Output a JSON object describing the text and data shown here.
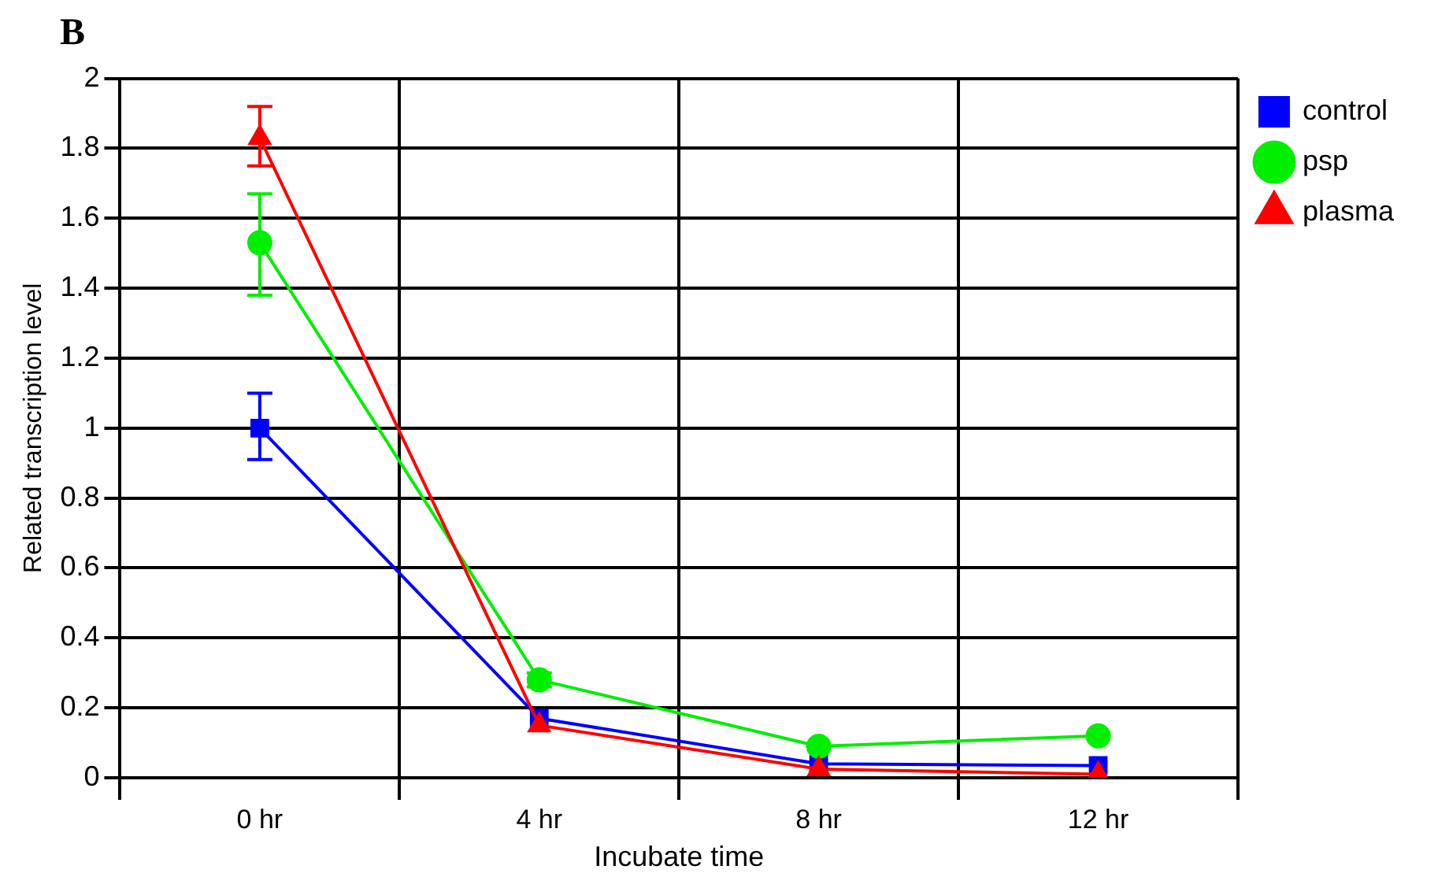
{
  "chart_data": {
    "type": "line",
    "annotations": [
      "B"
    ],
    "xlabel": "Incubate time",
    "ylabel": "Related transcription level",
    "categories": [
      "0 hr",
      "4 hr",
      "8 hr",
      "12 hr"
    ],
    "series": [
      {
        "name": "control",
        "color": "#0000ff",
        "marker": "square",
        "values": [
          1.0,
          0.17,
          0.04,
          0.035
        ],
        "errors": [
          [
            0.91,
            1.1
          ],
          null,
          null,
          null
        ]
      },
      {
        "name": "psp",
        "color": "#00ee00",
        "marker": "circle",
        "values": [
          1.53,
          0.28,
          0.09,
          0.12
        ],
        "errors": [
          [
            1.38,
            1.67
          ],
          [
            0.26,
            0.3
          ],
          null,
          null
        ]
      },
      {
        "name": "plasma",
        "color": "#ff0000",
        "marker": "triangle",
        "values": [
          1.83,
          0.15,
          0.025,
          0.01
        ],
        "errors": [
          [
            1.75,
            1.92
          ],
          null,
          null,
          null
        ]
      }
    ],
    "ylim": [
      0,
      2
    ],
    "yticks": [
      0,
      0.2,
      0.4,
      0.6,
      0.8,
      1,
      1.2,
      1.4,
      1.6,
      1.8,
      2
    ],
    "grid": true,
    "legend": "top right",
    "line_style": "solid"
  }
}
